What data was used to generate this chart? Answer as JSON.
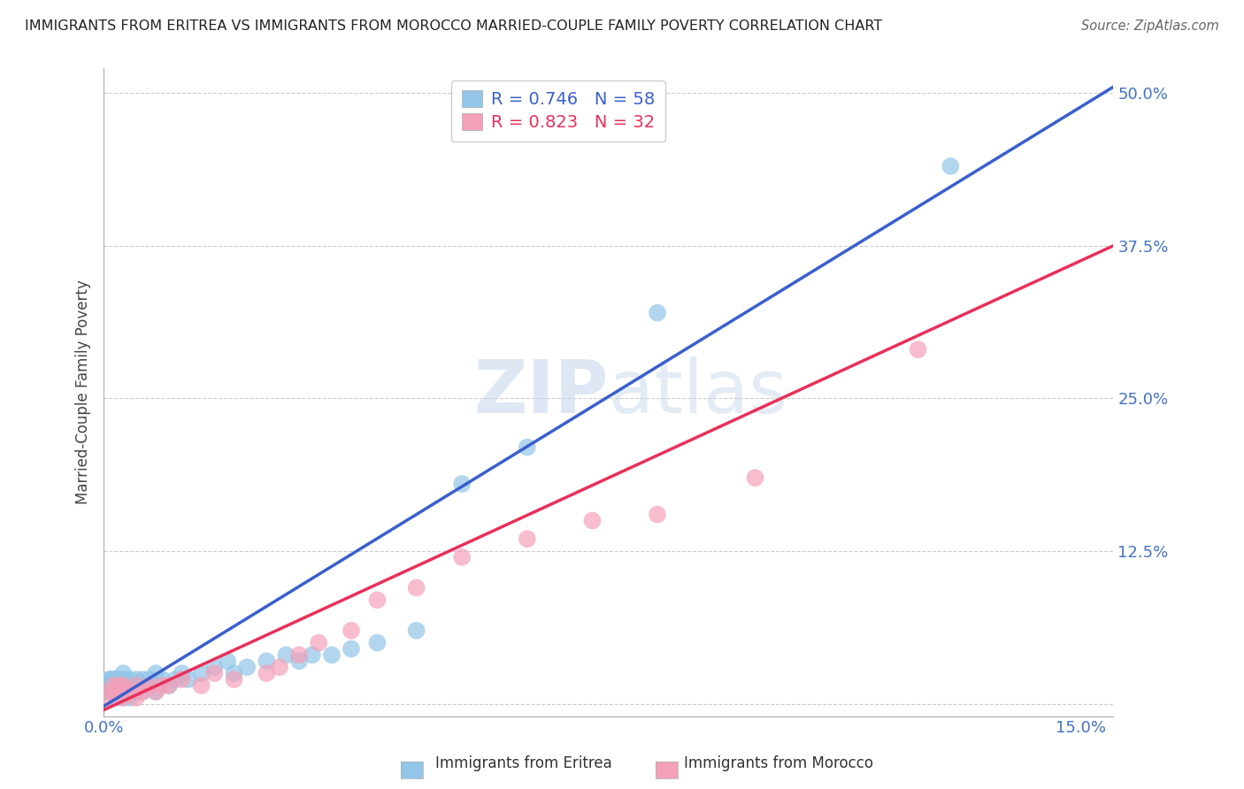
{
  "title": "IMMIGRANTS FROM ERITREA VS IMMIGRANTS FROM MOROCCO MARRIED-COUPLE FAMILY POVERTY CORRELATION CHART",
  "source": "Source: ZipAtlas.com",
  "ylabel": "Married-Couple Family Poverty",
  "xlim": [
    0.0,
    0.155
  ],
  "ylim": [
    -0.01,
    0.52
  ],
  "xticks": [
    0.0,
    0.03,
    0.06,
    0.09,
    0.12,
    0.15
  ],
  "yticks": [
    0.0,
    0.125,
    0.25,
    0.375,
    0.5
  ],
  "xticklabels": [
    "0.0%",
    "",
    "",
    "",
    "",
    "15.0%"
  ],
  "yticklabels": [
    "",
    "12.5%",
    "25.0%",
    "37.5%",
    "50.0%"
  ],
  "eritrea_R": 0.746,
  "eritrea_N": 58,
  "morocco_R": 0.823,
  "morocco_N": 32,
  "eritrea_color": "#92C5E8",
  "morocco_color": "#F4A0B8",
  "eritrea_line_color": "#3A5FCD",
  "morocco_line_color": "#E8305A",
  "background_color": "#ffffff",
  "watermark_color": "#C8D8EC",
  "grid_color": "#cccccc",
  "ytick_color": "#4472C4",
  "xtick_color": "#4472C4",
  "eritrea_x": [
    0.0003,
    0.0005,
    0.0007,
    0.0008,
    0.001,
    0.001,
    0.0012,
    0.0013,
    0.0015,
    0.0015,
    0.0017,
    0.0018,
    0.002,
    0.002,
    0.002,
    0.0022,
    0.0025,
    0.0025,
    0.003,
    0.003,
    0.003,
    0.003,
    0.0032,
    0.0035,
    0.004,
    0.004,
    0.004,
    0.005,
    0.005,
    0.005,
    0.006,
    0.006,
    0.007,
    0.007,
    0.008,
    0.008,
    0.009,
    0.01,
    0.011,
    0.012,
    0.013,
    0.015,
    0.017,
    0.019,
    0.02,
    0.022,
    0.025,
    0.028,
    0.03,
    0.032,
    0.035,
    0.038,
    0.042,
    0.048,
    0.055,
    0.065,
    0.085,
    0.13
  ],
  "eritrea_y": [
    0.01,
    0.015,
    0.01,
    0.02,
    0.01,
    0.015,
    0.02,
    0.01,
    0.015,
    0.02,
    0.01,
    0.02,
    0.005,
    0.01,
    0.02,
    0.015,
    0.01,
    0.02,
    0.005,
    0.01,
    0.015,
    0.025,
    0.02,
    0.01,
    0.005,
    0.01,
    0.02,
    0.01,
    0.015,
    0.02,
    0.01,
    0.02,
    0.015,
    0.02,
    0.01,
    0.025,
    0.02,
    0.015,
    0.02,
    0.025,
    0.02,
    0.025,
    0.03,
    0.035,
    0.025,
    0.03,
    0.035,
    0.04,
    0.035,
    0.04,
    0.04,
    0.045,
    0.05,
    0.06,
    0.18,
    0.21,
    0.32,
    0.44
  ],
  "morocco_x": [
    0.0005,
    0.001,
    0.0015,
    0.002,
    0.0025,
    0.003,
    0.003,
    0.004,
    0.005,
    0.005,
    0.006,
    0.007,
    0.008,
    0.009,
    0.01,
    0.012,
    0.015,
    0.017,
    0.02,
    0.025,
    0.027,
    0.03,
    0.033,
    0.038,
    0.042,
    0.048,
    0.055,
    0.065,
    0.075,
    0.085,
    0.1,
    0.125
  ],
  "morocco_y": [
    0.005,
    0.01,
    0.015,
    0.01,
    0.015,
    0.005,
    0.015,
    0.01,
    0.005,
    0.015,
    0.01,
    0.015,
    0.01,
    0.015,
    0.015,
    0.02,
    0.015,
    0.025,
    0.02,
    0.025,
    0.03,
    0.04,
    0.05,
    0.06,
    0.085,
    0.095,
    0.12,
    0.135,
    0.15,
    0.155,
    0.185,
    0.29
  ],
  "eritrea_line_x0": 0.0,
  "eritrea_line_y0": -0.002,
  "eritrea_line_x1": 0.155,
  "eritrea_line_y1": 0.505,
  "morocco_line_x0": 0.0,
  "morocco_line_y0": -0.005,
  "morocco_line_x1": 0.155,
  "morocco_line_y1": 0.375
}
